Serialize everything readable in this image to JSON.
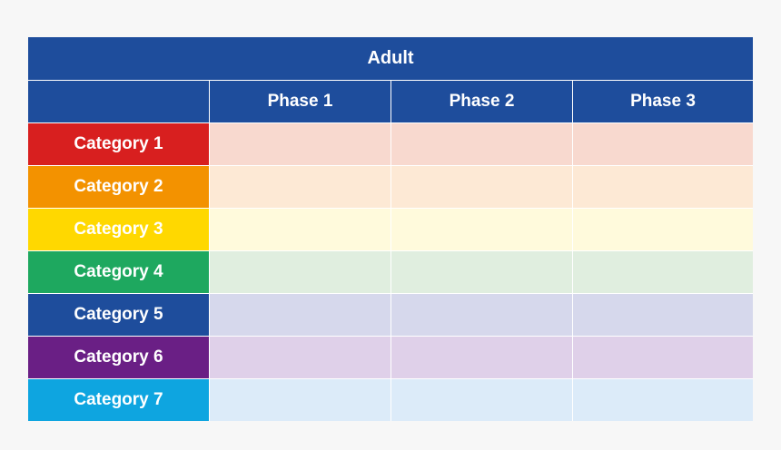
{
  "table": {
    "title": "Adult",
    "phases": [
      "Phase 1",
      "Phase 2",
      "Phase 3"
    ],
    "rows": [
      {
        "label": "Category 1",
        "color": "#d81f1f",
        "tint": "#f8d9cf"
      },
      {
        "label": "Category 2",
        "color": "#f39200",
        "tint": "#fde9d5"
      },
      {
        "label": "Category 3",
        "color": "#ffd800",
        "tint": "#fffadc"
      },
      {
        "label": "Category 4",
        "color": "#1ea85f",
        "tint": "#e0eedf"
      },
      {
        "label": "Category 5",
        "color": "#1e4d9c",
        "tint": "#d6d8ec"
      },
      {
        "label": "Category 6",
        "color": "#6a1f85",
        "tint": "#dfd0e9"
      },
      {
        "label": "Category 7",
        "color": "#0ea5e0",
        "tint": "#dcebf9"
      }
    ]
  },
  "colors": {
    "header": "#1e4d9c",
    "background": "#f7f7f7"
  }
}
